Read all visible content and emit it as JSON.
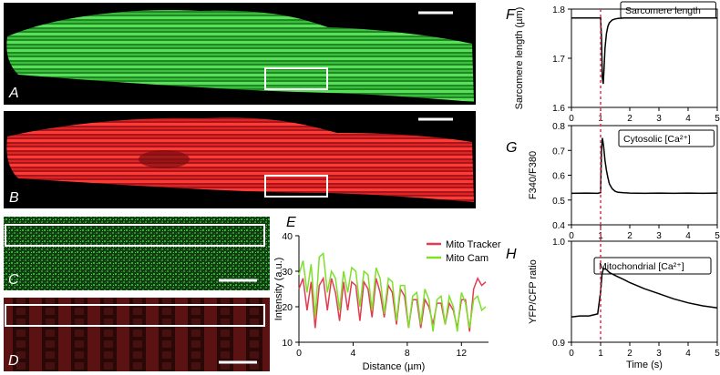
{
  "panels": {
    "A": "A",
    "B": "B",
    "C": "C",
    "D": "D",
    "E": "E",
    "F": "F",
    "G": "G",
    "H": "H"
  },
  "colors": {
    "green": "#38d23a",
    "red": "#e8282a",
    "trace_red": "#e33c52",
    "trace_green": "#7ee02a",
    "dash": "#d8335a"
  },
  "chart_data": [
    {
      "type": "line",
      "panel": "E",
      "xlabel": "Distance (µm)",
      "ylabel": "Intensity (a.u.)",
      "xlim": [
        0,
        14
      ],
      "ylim": [
        10,
        40
      ],
      "xticks": [
        "0",
        "4",
        "8",
        "12"
      ],
      "yticks": [
        "10",
        "20",
        "30",
        "40"
      ],
      "legend_position": "top-right",
      "series": [
        {
          "name": "Mito Tracker",
          "color": "#e33c52",
          "x": [
            0,
            0.3,
            0.6,
            0.9,
            1.2,
            1.5,
            1.8,
            2.1,
            2.4,
            2.7,
            3.0,
            3.3,
            3.6,
            3.9,
            4.2,
            4.5,
            4.8,
            5.1,
            5.4,
            5.7,
            6.0,
            6.3,
            6.6,
            6.9,
            7.2,
            7.5,
            7.8,
            8.1,
            8.4,
            8.7,
            9.0,
            9.3,
            9.6,
            9.9,
            10.2,
            10.5,
            10.8,
            11.1,
            11.4,
            11.7,
            12.0,
            12.3,
            12.6,
            12.9,
            13.2,
            13.5,
            13.8
          ],
          "y": [
            25,
            28,
            19,
            27,
            14,
            26,
            28,
            19,
            28,
            24,
            16,
            27,
            19,
            27,
            26,
            16,
            27,
            25,
            17,
            28,
            24,
            17,
            26,
            24,
            15,
            25,
            23,
            14,
            22,
            22,
            14,
            22,
            20,
            15,
            21,
            21,
            15,
            21,
            19,
            14,
            22,
            22,
            13,
            25,
            28,
            26,
            27
          ]
        },
        {
          "name": "Mito Cam",
          "color": "#7ee02a",
          "x": [
            0,
            0.3,
            0.6,
            0.9,
            1.2,
            1.5,
            1.8,
            2.1,
            2.4,
            2.7,
            3.0,
            3.3,
            3.6,
            3.9,
            4.2,
            4.5,
            4.8,
            5.1,
            5.4,
            5.7,
            6.0,
            6.3,
            6.6,
            6.9,
            7.2,
            7.5,
            7.8,
            8.1,
            8.4,
            8.7,
            9.0,
            9.3,
            9.6,
            9.9,
            10.2,
            10.5,
            10.8,
            11.1,
            11.4,
            11.7,
            12.0,
            12.3,
            12.6,
            12.9,
            13.2,
            13.5,
            13.8
          ],
          "y": [
            29,
            33,
            24,
            32,
            17,
            34,
            35,
            24,
            30,
            28,
            19,
            30,
            24,
            31,
            30,
            20,
            30,
            29,
            19,
            31,
            28,
            18,
            28,
            27,
            16,
            26,
            26,
            14,
            23,
            24,
            15,
            25,
            22,
            13,
            22,
            23,
            15,
            23,
            20,
            13,
            24,
            21,
            14,
            22,
            23,
            19,
            20
          ]
        }
      ]
    },
    {
      "type": "line",
      "panel": "F",
      "ylabel": "Sarcomere length (µm)",
      "annotation": "Sarcomere length",
      "xlim": [
        0,
        5
      ],
      "ylim": [
        1.6,
        1.8
      ],
      "xticks": [
        "0",
        "1",
        "2",
        "3",
        "4",
        "5"
      ],
      "yticks": [
        "1.6",
        "1.7",
        "1.8"
      ],
      "series": [
        {
          "color": "#000000",
          "x": [
            0,
            0.9,
            1.0,
            1.03,
            1.06,
            1.09,
            1.12,
            1.15,
            1.2,
            1.25,
            1.3,
            1.4,
            1.5,
            1.6,
            1.8,
            2.0,
            2.5,
            3,
            4,
            5
          ],
          "y": [
            1.782,
            1.782,
            1.782,
            1.74,
            1.66,
            1.648,
            1.68,
            1.72,
            1.75,
            1.765,
            1.772,
            1.778,
            1.78,
            1.781,
            1.782,
            1.782,
            1.782,
            1.782,
            1.782,
            1.782
          ]
        }
      ]
    },
    {
      "type": "line",
      "panel": "G",
      "ylabel": "F340/F380",
      "annotation": "Cytosolic [Ca²⁺]",
      "xlim": [
        0,
        5
      ],
      "ylim": [
        0.4,
        0.8
      ],
      "xticks": [
        "0",
        "1",
        "2",
        "3",
        "4",
        "5"
      ],
      "yticks": [
        "0.4",
        "0.5",
        "0.6",
        "0.7",
        "0.8"
      ],
      "series": [
        {
          "color": "#000000",
          "x": [
            0,
            0.5,
            0.9,
            1.0,
            1.03,
            1.06,
            1.1,
            1.15,
            1.2,
            1.25,
            1.3,
            1.4,
            1.5,
            1.6,
            1.8,
            2.0,
            2.5,
            3,
            3.5,
            4,
            4.5,
            5
          ],
          "y": [
            0.527,
            0.528,
            0.527,
            0.53,
            0.7,
            0.75,
            0.72,
            0.66,
            0.62,
            0.59,
            0.565,
            0.545,
            0.535,
            0.531,
            0.529,
            0.528,
            0.527,
            0.528,
            0.527,
            0.528,
            0.527,
            0.528
          ]
        }
      ]
    },
    {
      "type": "line",
      "panel": "H",
      "xlabel": "Time (s)",
      "ylabel": "YFP/CFP ratio",
      "annotation": "Mitochondrial [Ca²⁺]",
      "xlim": [
        0,
        5
      ],
      "ylim": [
        0.9,
        1.0
      ],
      "xticks": [
        "0",
        "1",
        "2",
        "3",
        "4",
        "5"
      ],
      "yticks": [
        "0.9",
        "1.0"
      ],
      "series": [
        {
          "color": "#000000",
          "x": [
            0,
            0.3,
            0.6,
            0.9,
            1.0,
            1.05,
            1.1,
            1.2,
            1.3,
            1.5,
            1.8,
            2.0,
            2.5,
            3.0,
            3.5,
            4.0,
            4.5,
            5.0
          ],
          "y": [
            0.925,
            0.926,
            0.926,
            0.928,
            0.95,
            0.968,
            0.973,
            0.972,
            0.969,
            0.966,
            0.962,
            0.959,
            0.953,
            0.948,
            0.943,
            0.939,
            0.936,
            0.934
          ]
        }
      ]
    }
  ]
}
